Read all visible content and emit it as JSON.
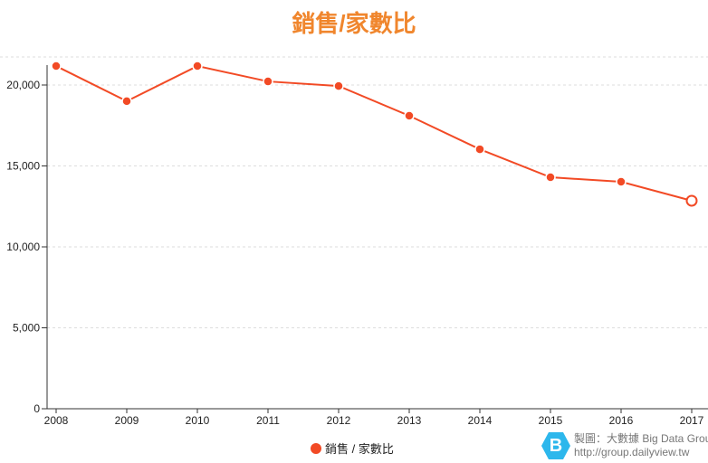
{
  "chart_data": {
    "type": "line",
    "title": "銷售/家數比",
    "categories": [
      "2008",
      "2009",
      "2010",
      "2011",
      "2012",
      "2013",
      "2014",
      "2015",
      "2016",
      "2017"
    ],
    "series": [
      {
        "name": "銷售 / 家數比",
        "values": [
          21170,
          19000,
          21170,
          20220,
          19940,
          18100,
          16030,
          14300,
          14020,
          12850
        ],
        "color": "#f24a25"
      }
    ],
    "ylim": [
      0,
      21500
    ],
    "yticks": [
      0,
      5000,
      10000,
      15000,
      20000
    ],
    "ytick_labels": [
      "0",
      "5,000",
      "10,000",
      "15,000",
      "20,000"
    ],
    "grid": true,
    "legend": "bottom"
  },
  "legend_label": "銷售 / 家數比",
  "credit": {
    "logo_letter": "B",
    "line1": "製圖：大數據 Big Data Group",
    "line2": "http://group.dailyview.tw"
  }
}
